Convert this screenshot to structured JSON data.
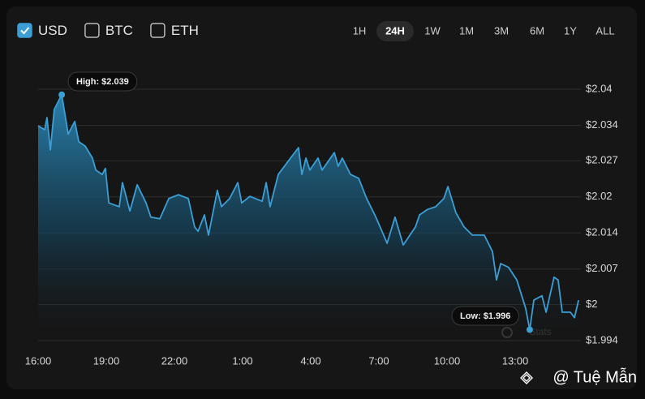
{
  "controls": {
    "currencies": [
      {
        "label": "USD",
        "checked": true
      },
      {
        "label": "BTC",
        "checked": false
      },
      {
        "label": "ETH",
        "checked": false
      }
    ],
    "ranges": [
      {
        "label": "1H",
        "active": false
      },
      {
        "label": "24H",
        "active": true
      },
      {
        "label": "1W",
        "active": false
      },
      {
        "label": "1M",
        "active": false
      },
      {
        "label": "3M",
        "active": false
      },
      {
        "label": "6M",
        "active": false
      },
      {
        "label": "1Y",
        "active": false
      },
      {
        "label": "ALL",
        "active": false
      }
    ]
  },
  "chart_watermark": "Stats",
  "watermark": "@ Tuệ Mẫn",
  "chart_data": {
    "type": "area",
    "x": [
      0,
      0.29,
      0.39,
      0.54,
      0.71,
      1.04,
      1.32,
      1.61,
      1.79,
      2.07,
      2.39,
      2.54,
      2.82,
      2.96,
      3.11,
      3.57,
      3.71,
      4.04,
      4.36,
      4.75,
      4.96,
      5.36,
      5.75,
      6.18,
      6.61,
      6.89,
      7.04,
      7.32,
      7.5,
      7.89,
      8.07,
      8.43,
      8.79,
      8.96,
      9.32,
      9.86,
      10.04,
      10.21,
      10.57,
      11.11,
      11.46,
      11.61,
      11.79,
      11.96,
      12.32,
      12.5,
      13.04,
      13.21,
      13.39,
      13.75,
      14.11,
      14.46,
      14.82,
      15.18,
      15.36,
      15.71,
      16.07,
      16.61,
      16.79,
      17.14,
      17.5,
      17.86,
      18.04,
      18.39,
      18.75,
      19.11,
      19.64,
      20,
      20.18,
      20.36,
      20.71,
      21.07,
      21.46,
      21.64,
      21.82,
      22.18,
      22.36,
      22.71,
      22.89,
      23.07,
      23.43,
      23.61,
      23.79
    ],
    "series": [
      {
        "name": "USD",
        "color": "#3b9fd6",
        "values": [
          2.0333,
          2.0326,
          2.0348,
          2.0289,
          2.0363,
          2.039,
          2.0318,
          2.0341,
          2.0304,
          2.0296,
          2.0274,
          2.0252,
          2.0244,
          2.0255,
          2.0192,
          2.0185,
          2.0229,
          2.0177,
          2.0225,
          2.0192,
          2.0166,
          2.0163,
          2.02,
          2.0207,
          2.02,
          2.0148,
          2.014,
          2.017,
          2.0133,
          2.0215,
          2.0185,
          2.02,
          2.0229,
          2.0192,
          2.0204,
          2.0195,
          2.0229,
          2.0185,
          2.0244,
          2.0274,
          2.0293,
          2.0244,
          2.0274,
          2.0252,
          2.0274,
          2.0252,
          2.0284,
          2.0259,
          2.0274,
          2.0244,
          2.0237,
          2.02,
          2.017,
          2.0136,
          2.0118,
          2.0166,
          2.0115,
          2.0148,
          2.017,
          2.018,
          2.0185,
          2.02,
          2.0222,
          2.0174,
          2.0148,
          2.0133,
          2.0133,
          2.0103,
          2.0051,
          2.0081,
          2.0074,
          2.0051,
          1.9999,
          1.996,
          2.0014,
          2.0022,
          1.9992,
          2.0056,
          2.0051,
          1.9992,
          1.9992,
          1.9982,
          2.0014
        ]
      }
    ],
    "annotations": [
      {
        "text": "High: $2.039",
        "value": 2.039
      },
      {
        "text": "Low: $1.996",
        "value": 1.996
      }
    ],
    "xlim": [
      0,
      24
    ],
    "xticks": [
      {
        "value": 0,
        "label": "16:00"
      },
      {
        "value": 3,
        "label": "19:00"
      },
      {
        "value": 6,
        "label": "22:00"
      },
      {
        "value": 9,
        "label": "1:00"
      },
      {
        "value": 12,
        "label": "4:00"
      },
      {
        "value": 15,
        "label": "7:00"
      },
      {
        "value": 18,
        "label": "10:00"
      },
      {
        "value": 21,
        "label": "13:00"
      }
    ],
    "ylim": [
      1.994,
      2.04
    ],
    "yticks": [
      {
        "value": 2.04,
        "label": "$2.04"
      },
      {
        "value": 2.0334,
        "label": "$2.034"
      },
      {
        "value": 2.0269,
        "label": "$2.027"
      },
      {
        "value": 2.0203,
        "label": "$2.02"
      },
      {
        "value": 2.0137,
        "label": "$2.014"
      },
      {
        "value": 2.0071,
        "label": "$2.007"
      },
      {
        "value": 2.0006,
        "label": "$2"
      },
      {
        "value": 1.994,
        "label": "$1.994"
      }
    ],
    "grid": true
  }
}
